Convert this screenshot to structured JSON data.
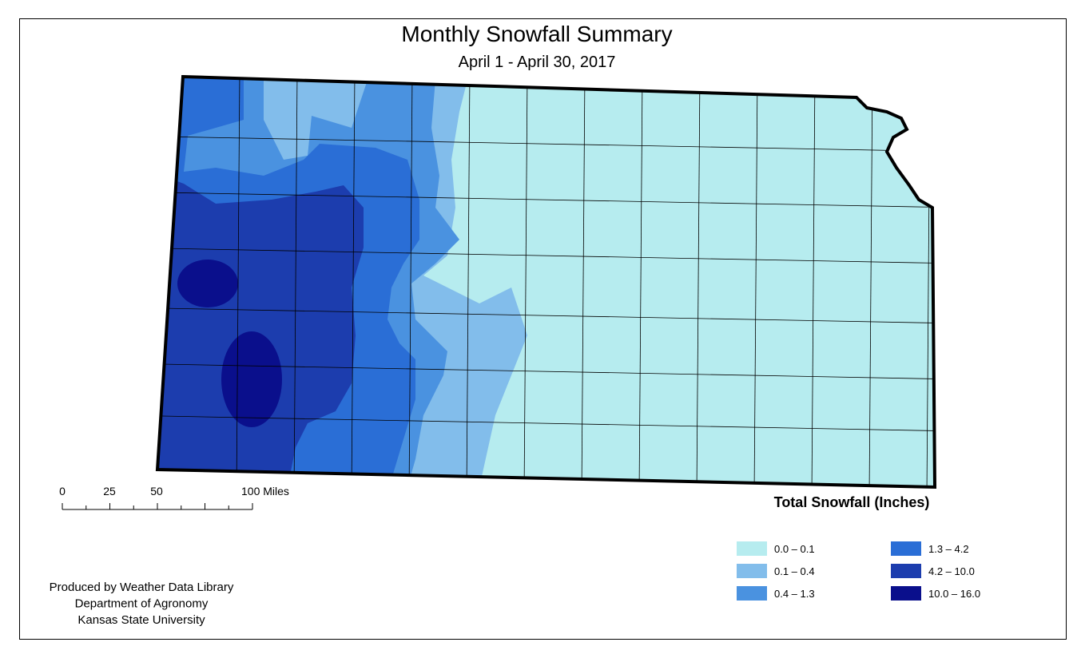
{
  "title": "Monthly Snowfall Summary",
  "subtitle": "April 1 - April 30, 2017",
  "scale_bar": {
    "labels": [
      "0",
      "25",
      "50",
      "100 Miles"
    ]
  },
  "legend": {
    "title": "Total Snowfall (Inches)",
    "items": [
      {
        "label": "0.0 – 0.1",
        "color": "#b6ecef"
      },
      {
        "label": "0.1 – 0.4",
        "color": "#82bdeb"
      },
      {
        "label": "0.4 – 1.3",
        "color": "#4a92e0"
      },
      {
        "label": "1.3 – 4.2",
        "color": "#2a6ed6"
      },
      {
        "label": "4.2 – 10.0",
        "color": "#1c3dae"
      },
      {
        "label": "10.0 – 16.0",
        "color": "#0a0f8c"
      }
    ]
  },
  "credits": [
    "Produced by Weather Data Library",
    "Department of Agronomy",
    "Kansas State University"
  ]
}
